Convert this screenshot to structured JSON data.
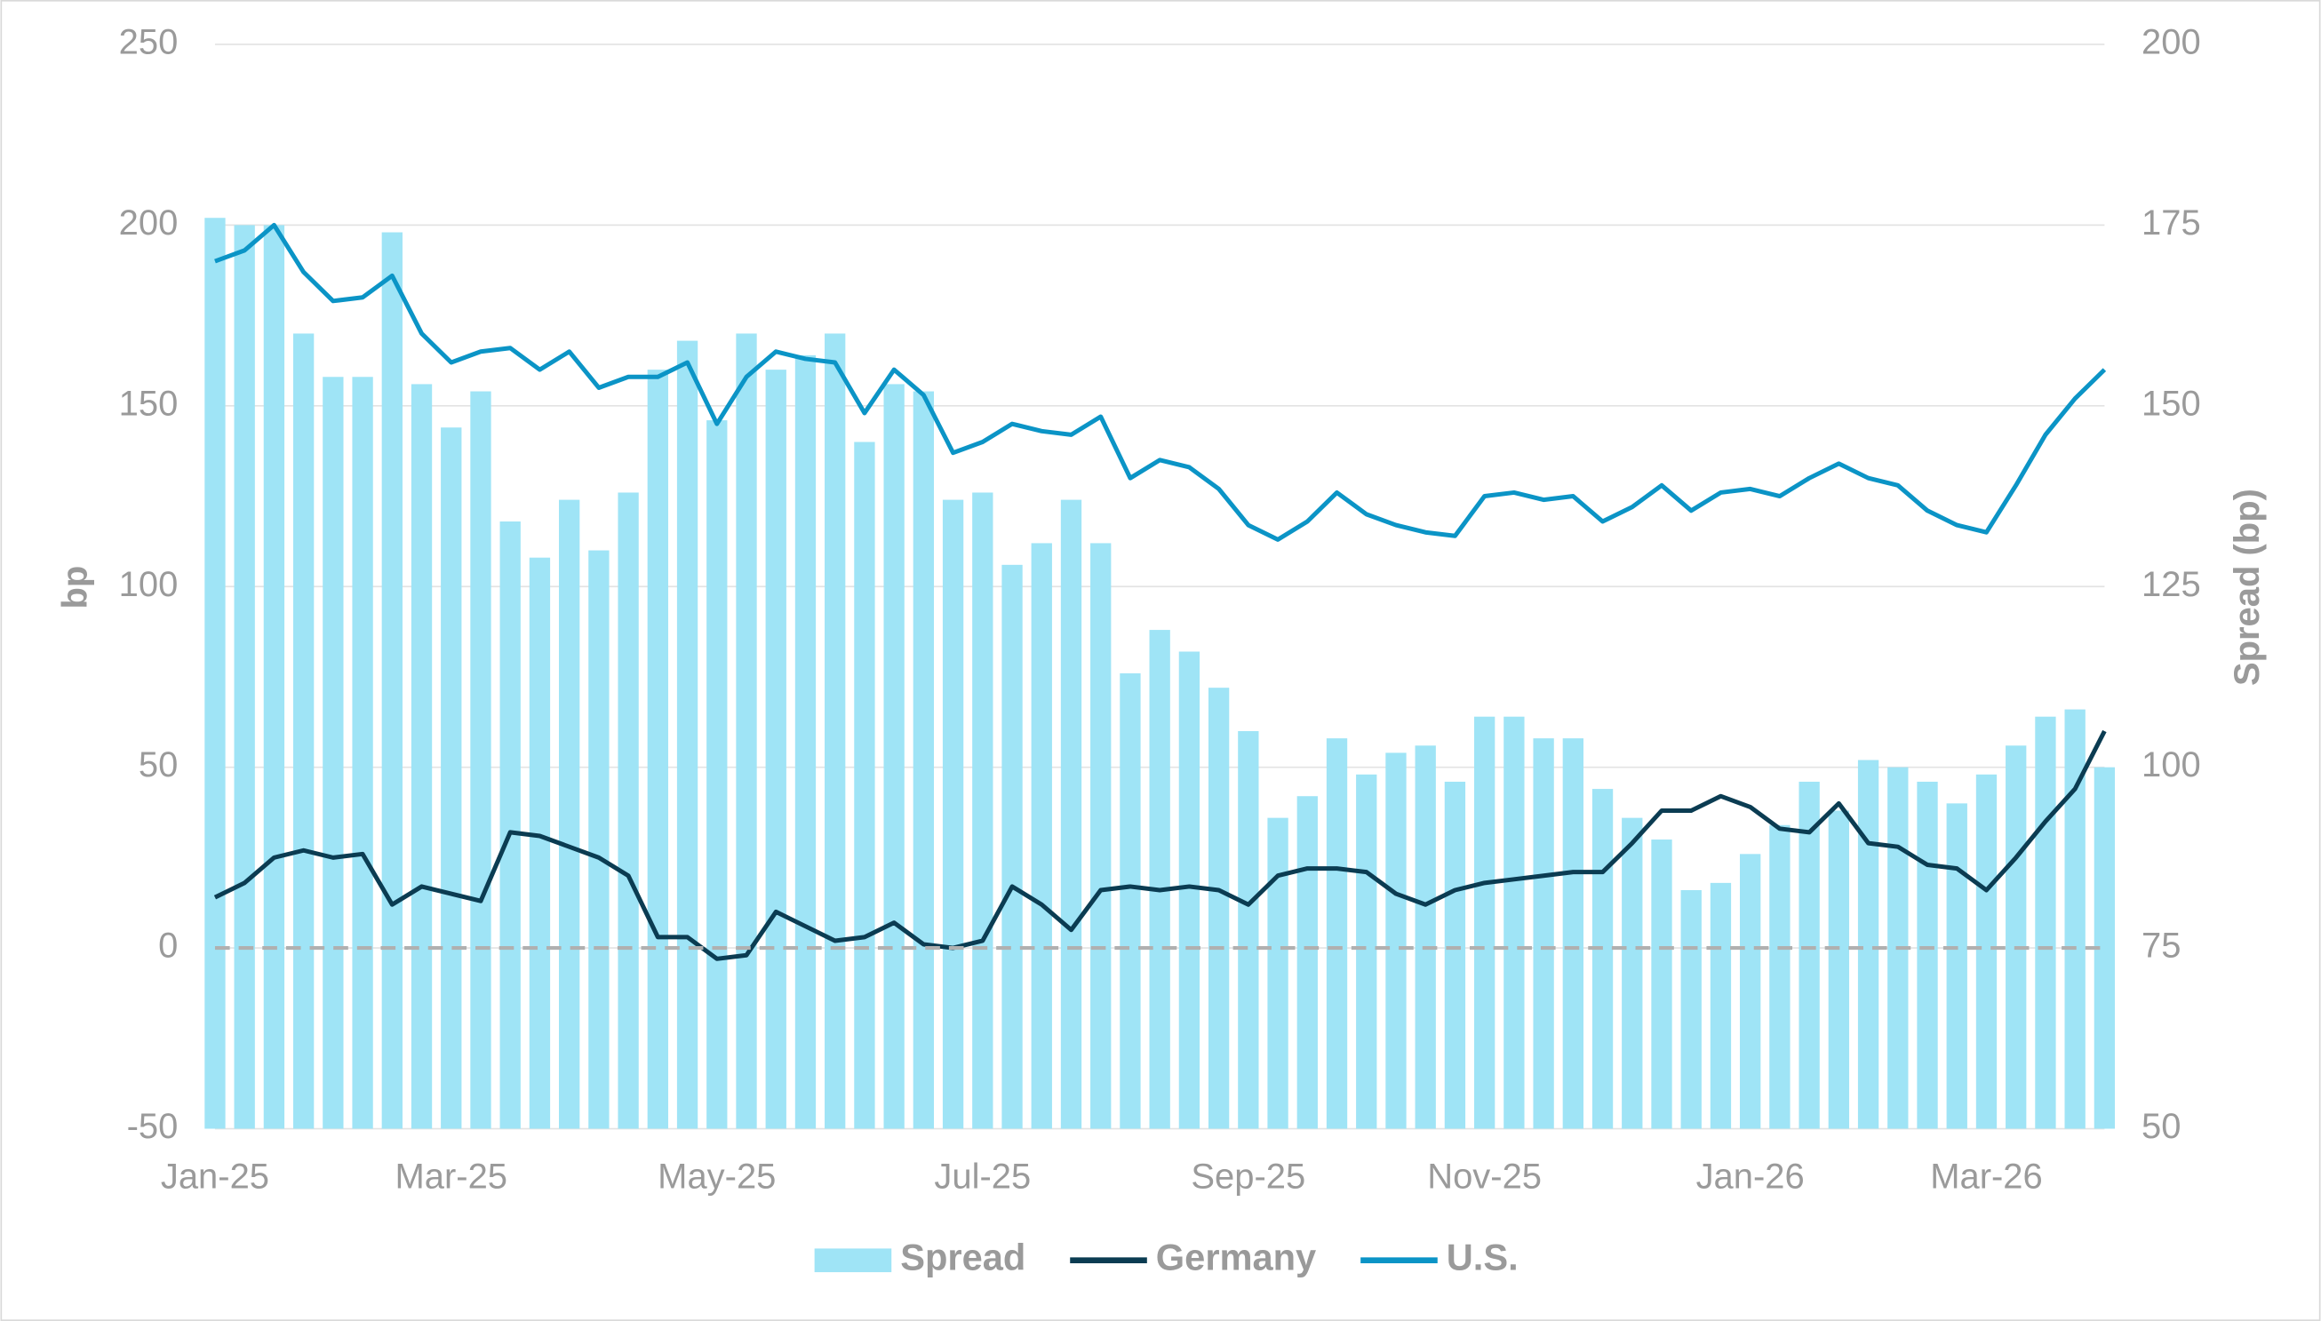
{
  "chart_data": {
    "type": "bar-line",
    "y_label": "bp",
    "y2_label": "Spread (bp)",
    "categories": [
      "Jan-25",
      null,
      null,
      null,
      null,
      null,
      null,
      null,
      "Mar-25",
      null,
      null,
      null,
      null,
      null,
      null,
      null,
      null,
      "May-25",
      null,
      null,
      null,
      null,
      null,
      null,
      null,
      null,
      "Jul-25",
      null,
      null,
      null,
      null,
      null,
      null,
      null,
      null,
      "Sep-25",
      null,
      null,
      null,
      null,
      null,
      null,
      null,
      "Nov-25",
      null,
      null,
      null,
      null,
      null,
      null,
      null,
      null,
      "Jan-26",
      null,
      null,
      null,
      null,
      null,
      null,
      null,
      "Mar-26",
      null,
      null,
      null,
      null
    ],
    "series": [
      {
        "name": "Spread",
        "kind": "bar",
        "axis": "y2",
        "color": "#9fe4f6",
        "values": [
          176,
          175,
          175,
          160,
          154,
          154,
          174,
          153,
          147,
          152,
          134,
          129,
          137,
          130,
          138,
          155,
          159,
          148,
          160,
          155,
          157,
          160,
          145,
          153,
          152,
          137,
          138,
          128,
          131,
          137,
          131,
          113,
          119,
          116,
          111,
          105,
          93,
          96,
          104,
          99,
          102,
          103,
          98,
          107,
          107,
          104,
          104,
          97,
          93,
          90,
          83,
          84,
          88,
          92,
          98,
          94,
          101,
          100,
          98,
          95,
          99,
          103,
          107,
          108,
          100
        ]
      },
      {
        "name": "Germany",
        "kind": "line",
        "axis": "y",
        "color": "#0b3c52",
        "values": [
          14,
          18,
          25,
          27,
          25,
          26,
          12,
          17,
          15,
          13,
          32,
          31,
          28,
          25,
          20,
          3,
          3,
          -3,
          -2,
          10,
          6,
          2,
          3,
          7,
          1,
          0,
          2,
          17,
          12,
          5,
          16,
          17,
          16,
          17,
          16,
          12,
          20,
          22,
          22,
          21,
          15,
          12,
          16,
          18,
          19,
          20,
          21,
          21,
          29,
          38,
          38,
          42,
          39,
          33,
          32,
          40,
          29,
          28,
          23,
          22,
          16,
          25,
          35,
          44,
          60
        ]
      },
      {
        "name": "U.S.",
        "kind": "line",
        "axis": "y",
        "color": "#0b94c6",
        "values": [
          190,
          193,
          200,
          187,
          179,
          180,
          186,
          170,
          162,
          165,
          166,
          160,
          165,
          155,
          158,
          158,
          162,
          145,
          158,
          165,
          163,
          162,
          148,
          160,
          153,
          137,
          140,
          145,
          143,
          142,
          147,
          130,
          135,
          133,
          127,
          117,
          113,
          118,
          126,
          120,
          117,
          115,
          114,
          125,
          126,
          124,
          125,
          118,
          122,
          128,
          121,
          126,
          127,
          125,
          130,
          134,
          130,
          128,
          121,
          117,
          115,
          128,
          142,
          152,
          160
        ]
      }
    ],
    "ylim": [
      -50,
      250
    ],
    "yticks": [
      -50,
      0,
      50,
      100,
      150,
      200,
      250
    ],
    "y2lim": [
      50,
      200
    ],
    "y2ticks": [
      50,
      75,
      100,
      125,
      150,
      175,
      200
    ],
    "grid": true,
    "zero_line": true,
    "legend": "bottom"
  }
}
